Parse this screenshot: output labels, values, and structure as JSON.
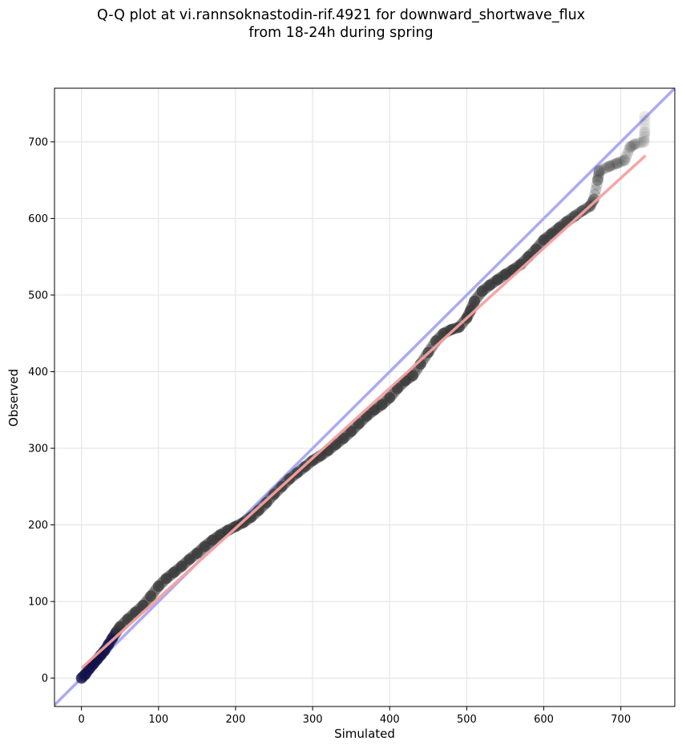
{
  "chart_data": {
    "type": "scatter",
    "title_line1": "Q-Q plot at vi.rannsoknastodin-rif.4921 for downward_shortwave_flux",
    "title_line2": "from 18-24h during spring",
    "xlabel": "Simulated",
    "ylabel": "Observed",
    "xlim": [
      -35,
      770
    ],
    "ylim": [
      -37,
      770
    ],
    "x_ticks": [
      0,
      100,
      200,
      300,
      400,
      500,
      600,
      700
    ],
    "y_ticks": [
      0,
      100,
      200,
      300,
      400,
      500,
      600,
      700
    ],
    "grid": true,
    "reference_line": {
      "slope": 1,
      "intercept": 0,
      "color": "#aaaaf5"
    },
    "fit_line": {
      "x": [
        0,
        732
      ],
      "y": [
        13,
        682
      ],
      "color": "#f5a0a0"
    },
    "quantiles": [
      {
        "x": 0,
        "y": 0
      },
      {
        "x": 5,
        "y": 5
      },
      {
        "x": 10,
        "y": 12
      },
      {
        "x": 15,
        "y": 18
      },
      {
        "x": 20,
        "y": 24
      },
      {
        "x": 25,
        "y": 30
      },
      {
        "x": 30,
        "y": 36
      },
      {
        "x": 35,
        "y": 44
      },
      {
        "x": 40,
        "y": 52
      },
      {
        "x": 45,
        "y": 60
      },
      {
        "x": 50,
        "y": 67
      },
      {
        "x": 60,
        "y": 77
      },
      {
        "x": 70,
        "y": 86
      },
      {
        "x": 80,
        "y": 95
      },
      {
        "x": 90,
        "y": 107
      },
      {
        "x": 100,
        "y": 120
      },
      {
        "x": 110,
        "y": 130
      },
      {
        "x": 120,
        "y": 138
      },
      {
        "x": 130,
        "y": 146
      },
      {
        "x": 140,
        "y": 155
      },
      {
        "x": 150,
        "y": 163
      },
      {
        "x": 160,
        "y": 172
      },
      {
        "x": 170,
        "y": 180
      },
      {
        "x": 180,
        "y": 187
      },
      {
        "x": 190,
        "y": 193
      },
      {
        "x": 200,
        "y": 198
      },
      {
        "x": 210,
        "y": 203
      },
      {
        "x": 220,
        "y": 210
      },
      {
        "x": 230,
        "y": 219
      },
      {
        "x": 240,
        "y": 229
      },
      {
        "x": 250,
        "y": 240
      },
      {
        "x": 260,
        "y": 250
      },
      {
        "x": 270,
        "y": 260
      },
      {
        "x": 280,
        "y": 268
      },
      {
        "x": 290,
        "y": 276
      },
      {
        "x": 300,
        "y": 284
      },
      {
        "x": 310,
        "y": 290
      },
      {
        "x": 320,
        "y": 297
      },
      {
        "x": 330,
        "y": 305
      },
      {
        "x": 340,
        "y": 313
      },
      {
        "x": 350,
        "y": 322
      },
      {
        "x": 360,
        "y": 332
      },
      {
        "x": 370,
        "y": 342
      },
      {
        "x": 380,
        "y": 350
      },
      {
        "x": 390,
        "y": 357
      },
      {
        "x": 400,
        "y": 366
      },
      {
        "x": 410,
        "y": 378
      },
      {
        "x": 420,
        "y": 388
      },
      {
        "x": 430,
        "y": 395
      },
      {
        "x": 440,
        "y": 410
      },
      {
        "x": 450,
        "y": 425
      },
      {
        "x": 460,
        "y": 440
      },
      {
        "x": 470,
        "y": 450
      },
      {
        "x": 480,
        "y": 455
      },
      {
        "x": 490,
        "y": 458
      },
      {
        "x": 500,
        "y": 470
      },
      {
        "x": 505,
        "y": 480
      },
      {
        "x": 510,
        "y": 492
      },
      {
        "x": 520,
        "y": 505
      },
      {
        "x": 530,
        "y": 513
      },
      {
        "x": 540,
        "y": 520
      },
      {
        "x": 550,
        "y": 527
      },
      {
        "x": 560,
        "y": 533
      },
      {
        "x": 570,
        "y": 540
      },
      {
        "x": 580,
        "y": 550
      },
      {
        "x": 590,
        "y": 560
      },
      {
        "x": 600,
        "y": 572
      },
      {
        "x": 610,
        "y": 580
      },
      {
        "x": 620,
        "y": 588
      },
      {
        "x": 630,
        "y": 596
      },
      {
        "x": 640,
        "y": 603
      },
      {
        "x": 650,
        "y": 610
      },
      {
        "x": 660,
        "y": 616
      },
      {
        "x": 665,
        "y": 625
      },
      {
        "x": 670,
        "y": 650
      },
      {
        "x": 672,
        "y": 662
      },
      {
        "x": 685,
        "y": 668
      },
      {
        "x": 695,
        "y": 672
      },
      {
        "x": 705,
        "y": 676
      },
      {
        "x": 712,
        "y": 693
      },
      {
        "x": 718,
        "y": 697
      },
      {
        "x": 730,
        "y": 700
      },
      {
        "x": 731,
        "y": 713
      },
      {
        "x": 731,
        "y": 733
      }
    ]
  }
}
